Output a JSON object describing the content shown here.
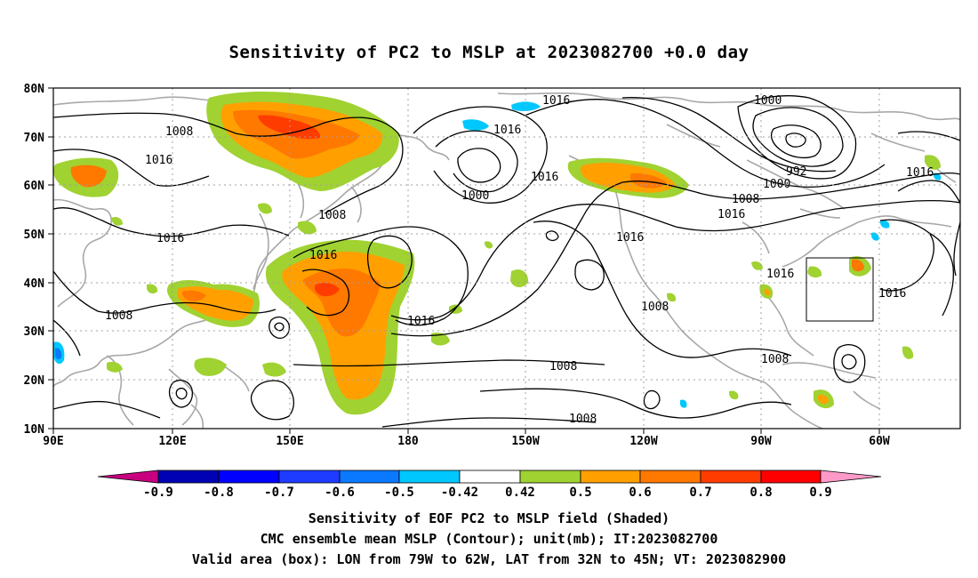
{
  "title": "Sensitivity of PC2 to MSLP at 2023082700 +0.0 day",
  "map": {
    "lat_labels": [
      "80N",
      "70N",
      "60N",
      "50N",
      "40N",
      "30N",
      "20N",
      "10N"
    ],
    "lon_labels": [
      "90E",
      "120E",
      "150E",
      "180",
      "150W",
      "120W",
      "90W",
      "60W"
    ],
    "contour_labels": [
      {
        "text": "1016"
      },
      {
        "text": "1000"
      },
      {
        "text": "1008"
      },
      {
        "text": "1016"
      },
      {
        "text": "1016"
      },
      {
        "text": "1008"
      },
      {
        "text": "1000"
      },
      {
        "text": "1016"
      },
      {
        "text": "992"
      },
      {
        "text": "1000"
      },
      {
        "text": "1016"
      },
      {
        "text": "1008"
      },
      {
        "text": "1016"
      },
      {
        "text": "1008"
      },
      {
        "text": "1016"
      },
      {
        "text": "1016"
      },
      {
        "text": "1016"
      },
      {
        "text": "1008"
      },
      {
        "text": "1016"
      },
      {
        "text": "1016"
      },
      {
        "text": "1008"
      },
      {
        "text": "1008"
      },
      {
        "text": "1008"
      },
      {
        "text": "1016"
      }
    ],
    "valid_box": {
      "lon_min": -79,
      "lon_max": -62,
      "lat_min": 32,
      "lat_max": 45
    }
  },
  "colorbar": {
    "colors": [
      "#c8007f",
      "#0000b4",
      "#0000ff",
      "#1e3cff",
      "#0a78ff",
      "#00aaff",
      "#00c8ff",
      "#ffffff",
      "#a0d232",
      "#ffa000",
      "#ff7800",
      "#ff3c00",
      "#ff0000",
      "#ff9ac8"
    ],
    "labels": [
      "-0.9",
      "-0.8",
      "-0.7",
      "-0.6",
      "-0.5",
      "-0.42",
      "0.42",
      "0.5",
      "0.6",
      "0.7",
      "0.8",
      "0.9"
    ]
  },
  "footer": {
    "line1": "Sensitivity of EOF PC2 to MSLP field (Shaded)",
    "line2": "CMC ensemble mean MSLP (Contour); unit(mb); IT:2023082700",
    "line3": "Valid area (box): LON from 79W to 62W, LAT from 32N to 45N; VT: 2023082900"
  }
}
